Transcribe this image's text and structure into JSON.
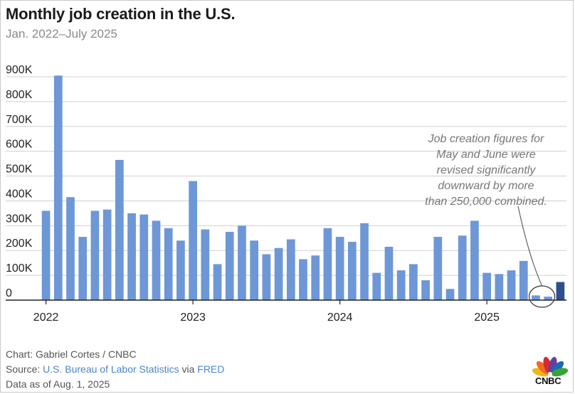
{
  "chart_data": {
    "type": "bar",
    "title": "Monthly job creation in the U.S.",
    "subtitle": "Jan. 2022–July 2025",
    "xlabel": "",
    "ylabel": "",
    "ylim": [
      0,
      900000
    ],
    "y_ticks": [
      {
        "value": 0,
        "label": "0"
      },
      {
        "value": 100000,
        "label": "100K"
      },
      {
        "value": 200000,
        "label": "200K"
      },
      {
        "value": 300000,
        "label": "300K"
      },
      {
        "value": 400000,
        "label": "400K"
      },
      {
        "value": 500000,
        "label": "500K"
      },
      {
        "value": 600000,
        "label": "600K"
      },
      {
        "value": 700000,
        "label": "700K"
      },
      {
        "value": 800000,
        "label": "800K"
      },
      {
        "value": 900000,
        "label": "900K"
      }
    ],
    "x_ticks": [
      {
        "index": 0,
        "label": "2022"
      },
      {
        "index": 12,
        "label": "2023"
      },
      {
        "index": 24,
        "label": "2024"
      },
      {
        "index": 36,
        "label": "2025"
      }
    ],
    "grid": true,
    "categories": [
      "2022-01",
      "2022-02",
      "2022-03",
      "2022-04",
      "2022-05",
      "2022-06",
      "2022-07",
      "2022-08",
      "2022-09",
      "2022-10",
      "2022-11",
      "2022-12",
      "2023-01",
      "2023-02",
      "2023-03",
      "2023-04",
      "2023-05",
      "2023-06",
      "2023-07",
      "2023-08",
      "2023-09",
      "2023-10",
      "2023-11",
      "2023-12",
      "2024-01",
      "2024-02",
      "2024-03",
      "2024-04",
      "2024-05",
      "2024-06",
      "2024-07",
      "2024-08",
      "2024-09",
      "2024-10",
      "2024-11",
      "2024-12",
      "2025-01",
      "2025-02",
      "2025-03",
      "2025-04",
      "2025-05",
      "2025-06",
      "2025-07"
    ],
    "values": [
      360000,
      905000,
      415000,
      255000,
      360000,
      365000,
      565000,
      350000,
      345000,
      320000,
      290000,
      240000,
      480000,
      285000,
      145000,
      275000,
      300000,
      240000,
      185000,
      210000,
      245000,
      165000,
      180000,
      290000,
      255000,
      235000,
      310000,
      110000,
      215000,
      120000,
      145000,
      80000,
      255000,
      45000,
      260000,
      320000,
      110000,
      105000,
      120000,
      158000,
      19000,
      14000,
      73000
    ],
    "colors": {
      "bar": "#6d97d6",
      "highlight": "#2e4f8f",
      "grid": "#cfcfcf",
      "axis": "#222222",
      "tick_text": "#222222",
      "annotation_text": "#777777"
    },
    "highlight_index": 42,
    "annotation": {
      "lines": [
        "Job creation figures for",
        "May and June were",
        "revised significantly",
        "downward by more",
        "than 250,000 combined."
      ],
      "target_indices": [
        40,
        41
      ]
    }
  },
  "footer": {
    "chart_credit": "Chart: Gabriel Cortes / CNBC",
    "source_prefix": "Source: ",
    "source_link_1": "U.S. Bureau of Labor Statistics",
    "source_via": " via ",
    "source_link_2": "FRED",
    "data_as_of": "Data as of Aug. 1, 2025"
  },
  "logo": {
    "text": "CNBC",
    "icon": "peacock-icon",
    "colors": [
      "#f3b41a",
      "#f06b21",
      "#d62a31",
      "#6b3e98",
      "#1d6ab3",
      "#3aa335"
    ]
  }
}
